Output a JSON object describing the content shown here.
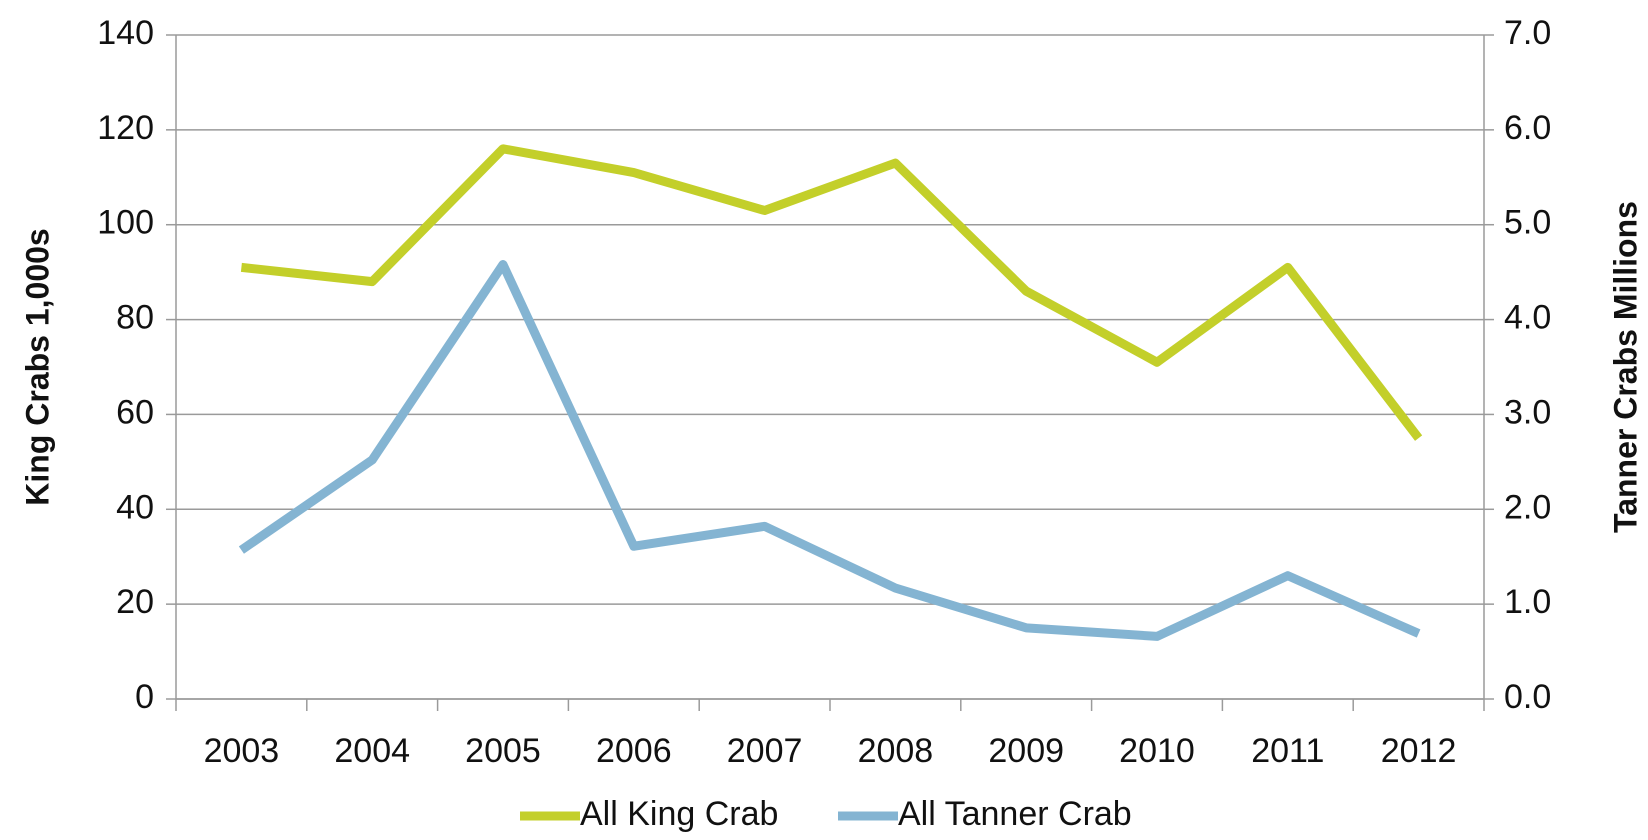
{
  "chart_data": {
    "type": "line",
    "categories": [
      "2003",
      "2004",
      "2005",
      "2006",
      "2007",
      "2008",
      "2009",
      "2010",
      "2011",
      "2012"
    ],
    "series": [
      {
        "name": "All King Crab",
        "color": "#c3cf2a",
        "values": [
          91,
          88,
          116,
          111,
          103,
          113,
          86,
          71,
          91,
          55
        ]
      },
      {
        "name": "All Tanner Crab",
        "color": "#84b4d2",
        "axis": "y2",
        "values": [
          1.57,
          2.52,
          4.58,
          1.61,
          1.82,
          1.17,
          0.75,
          0.66,
          1.3,
          0.69
        ]
      }
    ],
    "ylabel": "King Crabs 1,000s",
    "y2label": "Tanner Crabs Millions",
    "ylim": [
      0,
      140
    ],
    "yticks": [
      0,
      20,
      40,
      60,
      80,
      100,
      120,
      140
    ],
    "y2lim": [
      0,
      7
    ],
    "y2ticks": [
      {
        "value": 0,
        "label": "0.0"
      },
      {
        "value": 1,
        "label": "1.0"
      },
      {
        "value": 2,
        "label": "2.0"
      },
      {
        "value": 3,
        "label": "3.0"
      },
      {
        "value": 4,
        "label": "4.0"
      },
      {
        "value": 5,
        "label": "5.0"
      },
      {
        "value": 6,
        "label": "6.0"
      },
      {
        "value": 7,
        "label": "7.0"
      }
    ],
    "grid": true,
    "legend": "bottom"
  }
}
